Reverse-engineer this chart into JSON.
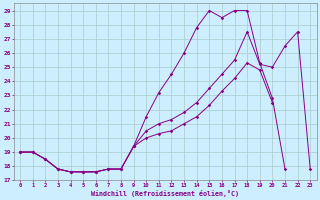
{
  "xlabel": "Windchill (Refroidissement éolien,°C)",
  "background_color": "#cceeff",
  "grid_color": "#aacccc",
  "line_color": "#880088",
  "xlim": [
    -0.5,
    23.5
  ],
  "ylim": [
    17,
    29.5
  ],
  "yticks": [
    17,
    18,
    19,
    20,
    21,
    22,
    23,
    24,
    25,
    26,
    27,
    28,
    29
  ],
  "xticks": [
    0,
    1,
    2,
    3,
    4,
    5,
    6,
    7,
    8,
    9,
    10,
    11,
    12,
    13,
    14,
    15,
    16,
    17,
    18,
    19,
    20,
    21,
    22,
    23
  ],
  "line1_x": [
    0,
    1,
    2,
    3,
    4,
    5,
    6,
    7,
    8,
    9,
    10,
    11,
    12,
    13,
    14,
    15,
    16,
    17,
    18,
    19,
    20,
    21
  ],
  "line1_y": [
    19,
    19,
    18.5,
    17.8,
    17.6,
    17.6,
    17.6,
    17.8,
    17.8,
    19.4,
    21.5,
    23.2,
    24.5,
    26.0,
    27.8,
    29.0,
    28.5,
    29.0,
    29.0,
    25.3,
    22.8,
    17.8
  ],
  "line2_x": [
    0,
    1,
    2,
    3,
    4,
    5,
    6,
    7,
    8,
    9,
    10,
    11,
    12,
    13,
    14,
    15,
    16,
    17,
    18,
    19,
    20,
    21,
    22,
    23
  ],
  "line2_y": [
    19,
    19,
    18.5,
    17.8,
    17.6,
    17.6,
    17.6,
    17.8,
    17.8,
    19.4,
    20.5,
    21.0,
    21.3,
    21.8,
    22.5,
    23.5,
    24.5,
    25.5,
    27.5,
    25.2,
    25.0,
    26.5,
    27.5,
    17.8
  ],
  "line3_x": [
    0,
    1,
    2,
    3,
    4,
    5,
    6,
    7,
    8,
    9,
    10,
    11,
    12,
    13,
    14,
    15,
    16,
    17,
    18,
    19,
    20
  ],
  "line3_y": [
    19,
    19,
    18.5,
    17.8,
    17.6,
    17.6,
    17.6,
    17.8,
    17.8,
    19.4,
    20.0,
    20.3,
    20.5,
    21.0,
    21.5,
    22.3,
    23.3,
    24.2,
    25.3,
    24.8,
    22.5
  ]
}
